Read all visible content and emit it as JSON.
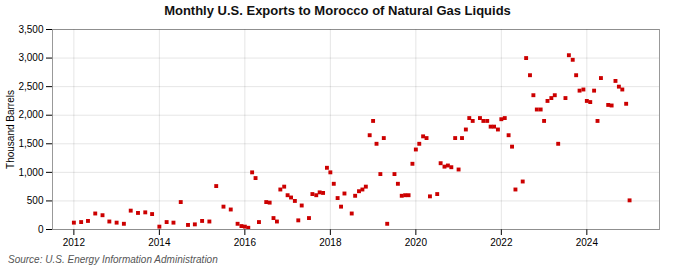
{
  "chart_data": {
    "type": "scatter",
    "title": "Monthly U.S. Exports to Morocco of Natural Gas Liquids",
    "ylabel": "Thousand Barrels",
    "caption": "Source: U.S. Energy Information Administration",
    "color": "#cc0000",
    "marker": "square",
    "grid": true,
    "xlim": [
      2011.5,
      2025.7
    ],
    "xticks": [
      2012,
      2014,
      2016,
      2018,
      2020,
      2022,
      2024
    ],
    "ylim": [
      0,
      3500
    ],
    "yticks": [
      0,
      500,
      {
        "value": 1000,
        "label": "1,000"
      },
      {
        "value": 1500,
        "label": "1,500"
      },
      {
        "value": 2000,
        "label": "2,000"
      },
      {
        "value": 2500,
        "label": "2,500"
      },
      {
        "value": 3000,
        "label": "3,000"
      },
      {
        "value": 3500,
        "label": "3,500"
      }
    ],
    "x": [
      2012.0,
      2012.17,
      2012.33,
      2012.5,
      2012.67,
      2012.83,
      2013.0,
      2013.17,
      2013.33,
      2013.5,
      2013.67,
      2013.83,
      2014.0,
      2014.17,
      2014.33,
      2014.5,
      2014.67,
      2014.83,
      2015.0,
      2015.17,
      2015.33,
      2015.5,
      2015.67,
      2015.83,
      2015.92,
      2016.0,
      2016.08,
      2016.17,
      2016.25,
      2016.33,
      2016.5,
      2016.58,
      2016.67,
      2016.75,
      2016.83,
      2016.92,
      2017.0,
      2017.08,
      2017.17,
      2017.25,
      2017.33,
      2017.5,
      2017.58,
      2017.67,
      2017.75,
      2017.83,
      2017.92,
      2018.0,
      2018.08,
      2018.17,
      2018.25,
      2018.33,
      2018.5,
      2018.58,
      2018.67,
      2018.75,
      2018.83,
      2018.92,
      2019.0,
      2019.08,
      2019.17,
      2019.25,
      2019.33,
      2019.5,
      2019.58,
      2019.67,
      2019.75,
      2019.83,
      2019.92,
      2020.0,
      2020.08,
      2020.17,
      2020.25,
      2020.33,
      2020.5,
      2020.58,
      2020.67,
      2020.75,
      2020.83,
      2020.92,
      2021.0,
      2021.08,
      2021.17,
      2021.25,
      2021.33,
      2021.5,
      2021.58,
      2021.67,
      2021.75,
      2021.83,
      2021.92,
      2022.0,
      2022.08,
      2022.17,
      2022.25,
      2022.33,
      2022.5,
      2022.58,
      2022.67,
      2022.75,
      2022.83,
      2022.92,
      2023.0,
      2023.08,
      2023.17,
      2023.25,
      2023.33,
      2023.5,
      2023.58,
      2023.67,
      2023.75,
      2023.83,
      2023.92,
      2024.0,
      2024.08,
      2024.17,
      2024.25,
      2024.33,
      2024.5,
      2024.58,
      2024.67,
      2024.75,
      2024.83,
      2024.92,
      2025.0
    ],
    "values": [
      120,
      130,
      150,
      280,
      250,
      140,
      120,
      100,
      330,
      290,
      300,
      270,
      50,
      130,
      120,
      480,
      80,
      90,
      150,
      140,
      760,
      400,
      350,
      100,
      60,
      50,
      30,
      1000,
      900,
      130,
      480,
      470,
      200,
      140,
      700,
      750,
      600,
      560,
      500,
      160,
      420,
      200,
      620,
      600,
      650,
      640,
      1080,
      1000,
      800,
      550,
      400,
      630,
      280,
      590,
      670,
      700,
      750,
      1650,
      1900,
      1500,
      970,
      1600,
      100,
      970,
      800,
      590,
      600,
      600,
      1150,
      1400,
      1500,
      1630,
      1600,
      580,
      620,
      1160,
      1100,
      1120,
      1090,
      1600,
      1050,
      1600,
      1750,
      1950,
      1900,
      1950,
      1900,
      1900,
      1800,
      1800,
      1750,
      1930,
      1950,
      1650,
      1450,
      700,
      840,
      3000,
      2700,
      2350,
      2100,
      2100,
      1900,
      2250,
      2300,
      2350,
      1500,
      2300,
      3050,
      2970,
      2700,
      2430,
      2450,
      2250,
      2230,
      2430,
      1900,
      2650,
      2180,
      2170,
      2600,
      2500,
      2450,
      2200,
      510
    ]
  }
}
